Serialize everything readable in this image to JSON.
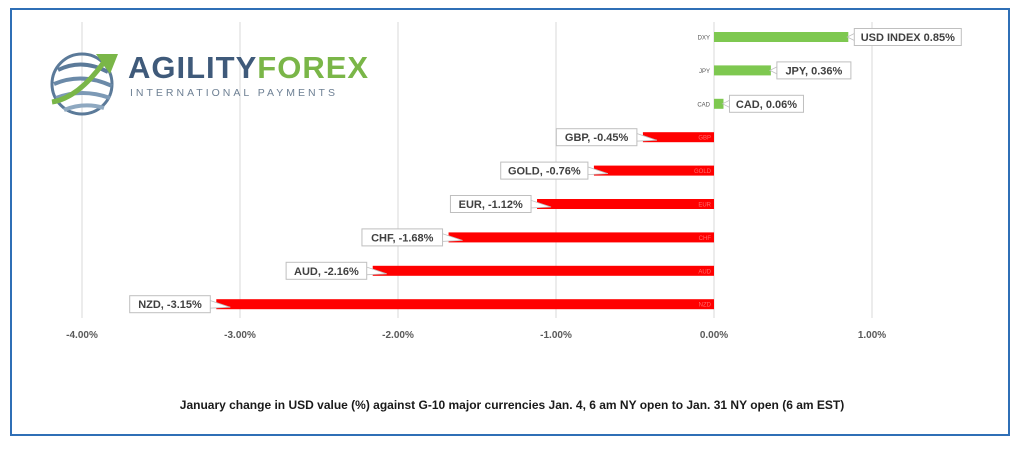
{
  "logo": {
    "brand_part1": "AGILITY",
    "brand_part2": "FOREX",
    "tagline": "INTERNATIONAL PAYMENTS"
  },
  "caption": "January change in  USD value (%)  against  G-10 major currencies  Jan. 4, 6 am NY open to Jan. 31 NY open  (6 am EST)",
  "colors": {
    "positive": "#7ec850",
    "negative": "#ff0000",
    "frame": "#2f6fb6",
    "grid": "#d9d9d9"
  },
  "chart_data": {
    "type": "bar",
    "orientation": "horizontal",
    "categories": [
      "DXY",
      "JPY",
      "CAD",
      "GBP",
      "GOLD",
      "EUR",
      "CHF",
      "AUD",
      "NZD"
    ],
    "values": [
      0.85,
      0.36,
      0.06,
      -0.45,
      -0.76,
      -1.12,
      -1.68,
      -2.16,
      -3.15
    ],
    "data_labels": [
      "USD INDEX 0.85%",
      "JPY, 0.36%",
      "CAD, 0.06%",
      "GBP, -0.45%",
      "GOLD, -0.76%",
      "EUR, -1.12%",
      "CHF, -1.68%",
      "AUD, -2.16%",
      "NZD, -3.15%"
    ],
    "xlim": [
      -4.0,
      1.0
    ],
    "xticks": [
      -4.0,
      -3.0,
      -2.0,
      -1.0,
      0.0,
      1.0
    ],
    "xtick_labels": [
      "-4.00%",
      "-3.00%",
      "-2.00%",
      "-1.00%",
      "0.00%",
      "1.00%"
    ],
    "grid": true,
    "title": "",
    "xlabel": "",
    "ylabel": ""
  }
}
